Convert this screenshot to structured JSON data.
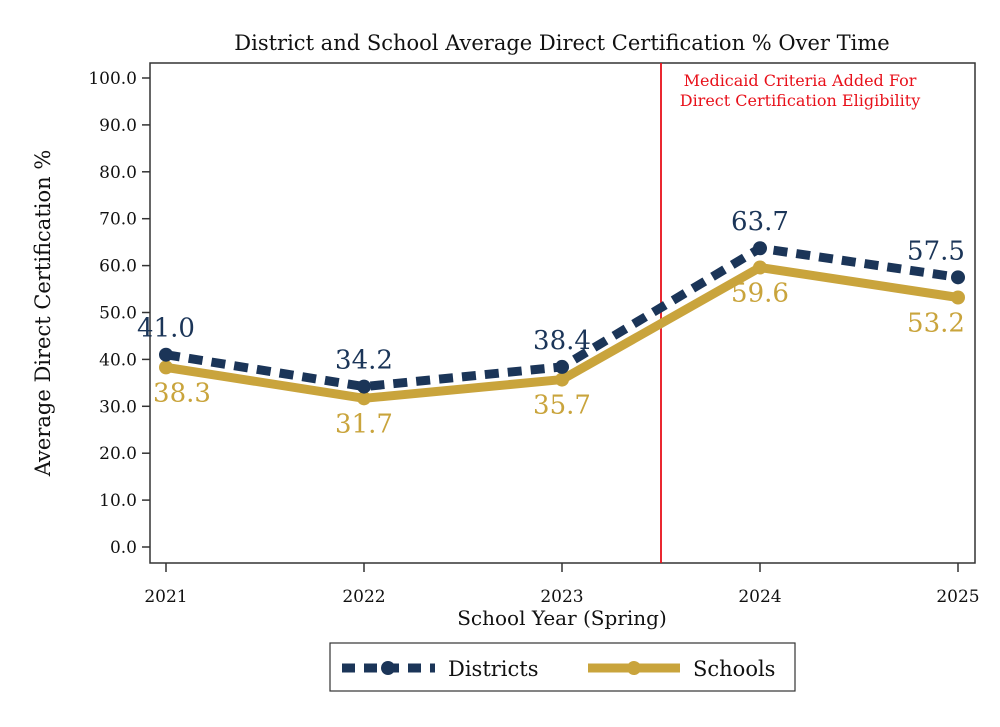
{
  "chart_data": {
    "type": "line",
    "title": "District and School Average Direct Certification % Over Time",
    "xlabel": "School Year (Spring)",
    "ylabel": "Average Direct Certification %",
    "x": [
      2021,
      2022,
      2023,
      2024,
      2025
    ],
    "x_tick_labels": [
      "2021",
      "2022",
      "2023",
      "2024",
      "2025"
    ],
    "ylim": [
      0,
      100
    ],
    "y_ticks": [
      0,
      10,
      20,
      30,
      40,
      50,
      60,
      70,
      80,
      90,
      100
    ],
    "y_tick_labels": [
      "0.0",
      "10.0",
      "20.0",
      "30.0",
      "40.0",
      "50.0",
      "60.0",
      "70.0",
      "80.0",
      "90.0",
      "100.0"
    ],
    "grid": false,
    "legend_placement": "bottom",
    "series": [
      {
        "name": "Districts",
        "values": [
          41.0,
          34.2,
          38.4,
          63.7,
          57.5
        ],
        "labels": [
          "41.0",
          "34.2",
          "38.4",
          "63.7",
          "57.5"
        ],
        "color": "#1b3558",
        "style": "dashed"
      },
      {
        "name": "Schools",
        "values": [
          38.3,
          31.7,
          35.7,
          59.6,
          53.2
        ],
        "labels": [
          "38.3",
          "31.7",
          "35.7",
          "59.6",
          "53.2"
        ],
        "color": "#c9a43c",
        "style": "solid"
      }
    ],
    "annotations": [
      {
        "x": 2023.5,
        "type": "vertical-line",
        "color": "#e8101a",
        "text_lines": [
          "Medicaid Criteria Added For",
          "Direct Certification Eligibility"
        ]
      }
    ]
  }
}
